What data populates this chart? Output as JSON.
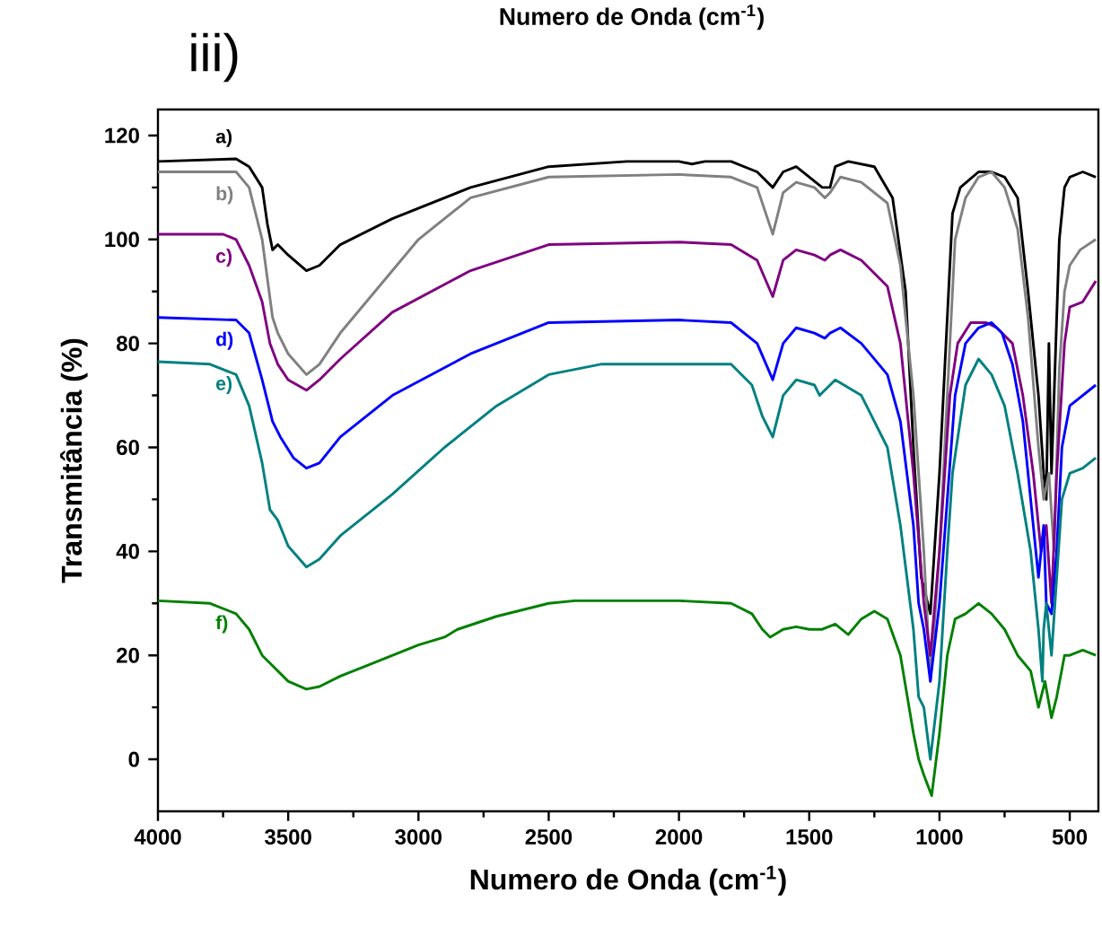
{
  "chart_data": {
    "type": "line",
    "xlabel": "Numero de Onda (cm$^{-1}$)",
    "ylabel": "Transmitância (%)",
    "annotations": [
      "iii)",
      "Numero de Onda (cm$^{-1}$)"
    ],
    "legend": "left",
    "xlim": [
      4000,
      390
    ],
    "ylim": [
      -10,
      125
    ],
    "xticks": [
      4000,
      3500,
      3000,
      2500,
      2000,
      1500,
      1000,
      500
    ],
    "yticks": [
      0,
      20,
      40,
      60,
      80,
      100,
      120
    ],
    "series": [
      {
        "name": "a)",
        "color": "#000000",
        "x": [
          4000,
          3700,
          3650,
          3600,
          3580,
          3560,
          3540,
          3500,
          3430,
          3380,
          3300,
          3100,
          2800,
          2500,
          2200,
          2000,
          1950,
          1900,
          1800,
          1700,
          1640,
          1600,
          1550,
          1500,
          1450,
          1420,
          1400,
          1350,
          1250,
          1180,
          1130,
          1100,
          1070,
          1035,
          1000,
          960,
          950,
          920,
          850,
          800,
          750,
          700,
          660,
          620,
          600,
          590,
          580,
          570,
          560,
          540,
          520,
          500,
          450,
          400
        ],
        "values": [
          115,
          115.5,
          114,
          110,
          103,
          98,
          99,
          97,
          94,
          95,
          99,
          104,
          110,
          114,
          115,
          115,
          114.5,
          115,
          115,
          113,
          110,
          113,
          114,
          112,
          110,
          110,
          114,
          115,
          114,
          108,
          90,
          60,
          35,
          28,
          55,
          95,
          105,
          110,
          113,
          113,
          112,
          108,
          90,
          70,
          55,
          50,
          80,
          55,
          70,
          100,
          110,
          112,
          113,
          112
        ]
      },
      {
        "name": "b)",
        "color": "#808080",
        "x": [
          4000,
          3700,
          3650,
          3600,
          3560,
          3540,
          3500,
          3430,
          3380,
          3300,
          3200,
          3000,
          2800,
          2500,
          2000,
          1800,
          1700,
          1640,
          1600,
          1550,
          1480,
          1440,
          1420,
          1380,
          1300,
          1200,
          1150,
          1100,
          1060,
          1035,
          1000,
          960,
          940,
          900,
          850,
          800,
          750,
          700,
          660,
          620,
          600,
          580,
          560,
          540,
          520,
          500,
          460,
          400
        ],
        "values": [
          113,
          113,
          110,
          100,
          85,
          82,
          78,
          74,
          76,
          82,
          88,
          100,
          108,
          112,
          112.5,
          112,
          110,
          101,
          109,
          111,
          110,
          108,
          109,
          112,
          111,
          107,
          95,
          70,
          40,
          15,
          40,
          80,
          100,
          108,
          112,
          113,
          110,
          102,
          85,
          60,
          50,
          55,
          40,
          75,
          90,
          95,
          98,
          100
        ]
      },
      {
        "name": "c)",
        "color": "#800080",
        "x": [
          4000,
          3750,
          3700,
          3650,
          3600,
          3570,
          3540,
          3500,
          3430,
          3380,
          3300,
          3100,
          2800,
          2500,
          2000,
          1800,
          1700,
          1640,
          1600,
          1550,
          1480,
          1440,
          1420,
          1380,
          1300,
          1200,
          1150,
          1100,
          1060,
          1035,
          1000,
          960,
          930,
          880,
          820,
          780,
          720,
          680,
          640,
          610,
          590,
          570,
          550,
          520,
          500,
          450,
          400
        ],
        "values": [
          101,
          101,
          100,
          95,
          88,
          80,
          76,
          73,
          71,
          73,
          77,
          86,
          94,
          99,
          99.5,
          99,
          96,
          89,
          96,
          98,
          97,
          96,
          97,
          98,
          96,
          91,
          80,
          55,
          30,
          20,
          40,
          70,
          80,
          84,
          84,
          83,
          80,
          70,
          55,
          40,
          45,
          30,
          55,
          80,
          87,
          88,
          92
        ]
      },
      {
        "name": "d)",
        "color": "#0000ff",
        "x": [
          4000,
          3700,
          3650,
          3600,
          3560,
          3530,
          3480,
          3430,
          3380,
          3300,
          3100,
          2800,
          2500,
          2000,
          1800,
          1700,
          1640,
          1600,
          1550,
          1480,
          1440,
          1420,
          1380,
          1300,
          1200,
          1150,
          1100,
          1080,
          1060,
          1035,
          1000,
          970,
          940,
          900,
          850,
          800,
          760,
          720,
          680,
          640,
          620,
          600,
          590,
          570,
          550,
          530,
          500,
          450,
          400
        ],
        "values": [
          85,
          84.5,
          82,
          73,
          65,
          62,
          58,
          56,
          57,
          62,
          70,
          78,
          84,
          84.5,
          84,
          80,
          73,
          80,
          83,
          82,
          81,
          82,
          83,
          80,
          74,
          65,
          45,
          30,
          25,
          15,
          30,
          50,
          70,
          80,
          83,
          84,
          82,
          76,
          65,
          45,
          35,
          45,
          30,
          28,
          40,
          60,
          68,
          70,
          72
        ]
      },
      {
        "name": "e)",
        "color": "#008080",
        "x": [
          4000,
          3800,
          3700,
          3650,
          3600,
          3570,
          3540,
          3500,
          3430,
          3380,
          3300,
          3100,
          2900,
          2700,
          2500,
          2300,
          2000,
          1800,
          1720,
          1680,
          1640,
          1600,
          1550,
          1480,
          1460,
          1440,
          1400,
          1300,
          1200,
          1150,
          1100,
          1080,
          1060,
          1035,
          1000,
          970,
          950,
          900,
          850,
          800,
          750,
          700,
          650,
          620,
          605,
          600,
          590,
          570,
          550,
          530,
          500,
          450,
          400
        ],
        "values": [
          76.5,
          76,
          74,
          68,
          57,
          48,
          46,
          41,
          37,
          38.5,
          43,
          51,
          60,
          68,
          74,
          76,
          76,
          76,
          72,
          66,
          62,
          70,
          73,
          72,
          70,
          71,
          73,
          70,
          60,
          45,
          25,
          12,
          10,
          0,
          15,
          40,
          55,
          72,
          77,
          74,
          68,
          55,
          40,
          25,
          15,
          25,
          30,
          20,
          35,
          50,
          55,
          56,
          58
        ]
      },
      {
        "name": "f)",
        "color": "#008000",
        "x": [
          4000,
          3800,
          3700,
          3650,
          3600,
          3560,
          3500,
          3430,
          3380,
          3300,
          3200,
          3000,
          2900,
          2850,
          2700,
          2500,
          2400,
          2000,
          1800,
          1720,
          1680,
          1650,
          1600,
          1550,
          1500,
          1450,
          1400,
          1350,
          1300,
          1250,
          1200,
          1150,
          1100,
          1080,
          1060,
          1030,
          1000,
          970,
          940,
          900,
          850,
          800,
          750,
          700,
          650,
          620,
          610,
          595,
          570,
          550,
          520,
          500,
          450,
          400
        ],
        "values": [
          30.5,
          30,
          28,
          25,
          20,
          18,
          15,
          13.5,
          14,
          16,
          18,
          22,
          23.5,
          25,
          27.5,
          30,
          30.5,
          30.5,
          30,
          28,
          25,
          23.5,
          25,
          25.5,
          25,
          25,
          26,
          24,
          27,
          28.5,
          27,
          20,
          5,
          0,
          -3,
          -7,
          5,
          20,
          27,
          28,
          30,
          28,
          25,
          20,
          17,
          10,
          12,
          15,
          8,
          12,
          20,
          20,
          21,
          20
        ]
      }
    ]
  }
}
